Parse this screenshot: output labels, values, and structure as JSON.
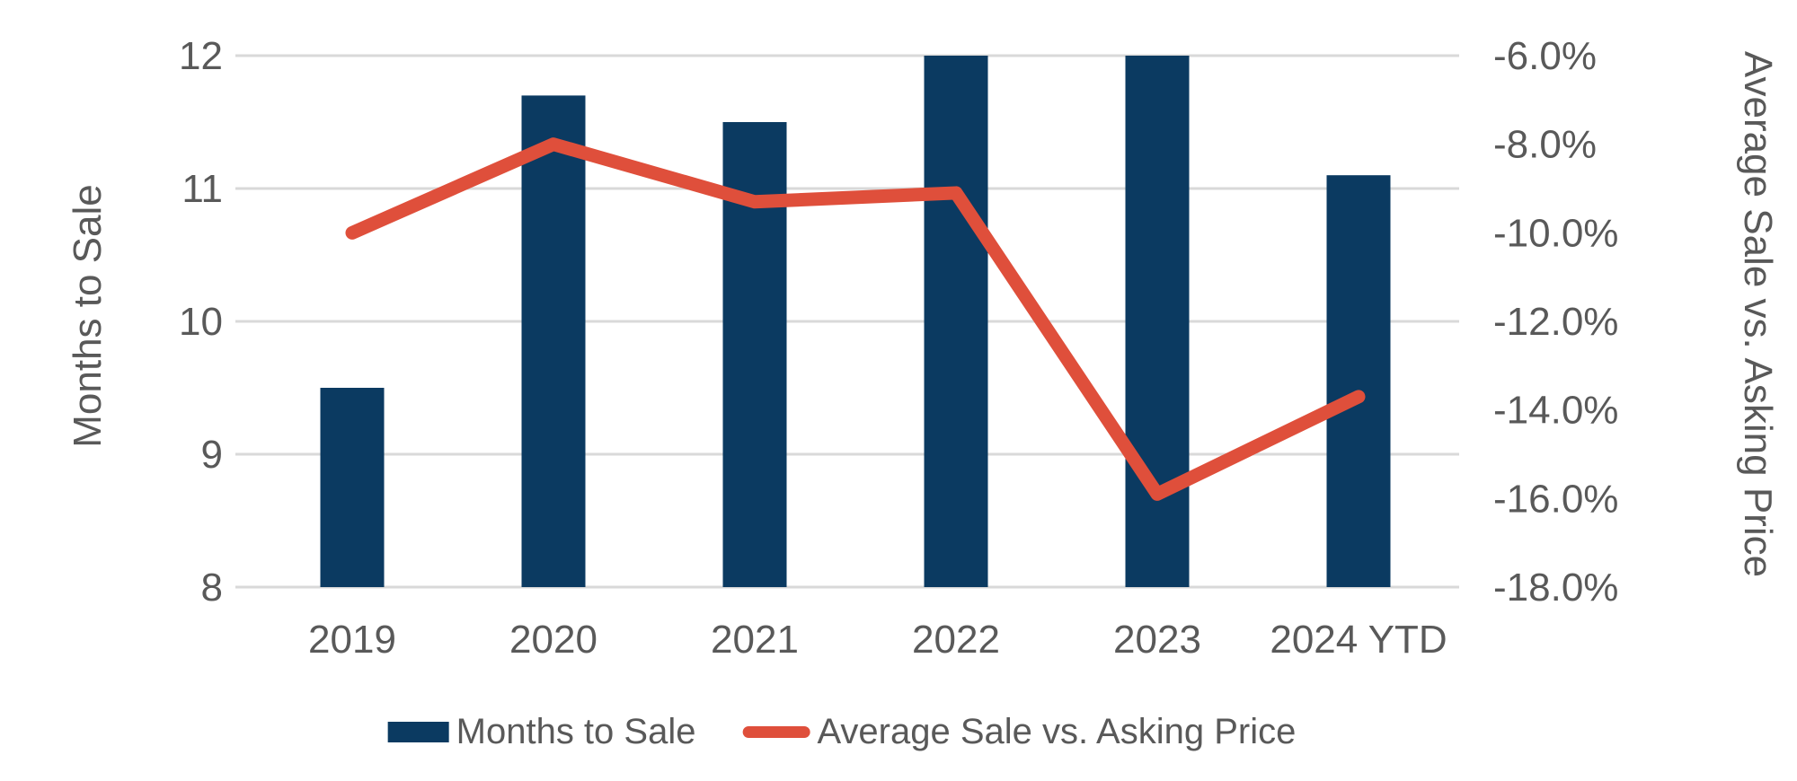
{
  "chart_data": {
    "type": "combo-bar-line",
    "categories": [
      "2019",
      "2020",
      "2021",
      "2022",
      "2023",
      "2024 YTD"
    ],
    "series": [
      {
        "name": "Months to Sale",
        "type": "bar",
        "axis": "left",
        "color": "#0B3A61",
        "values": [
          9.5,
          11.7,
          11.5,
          12.0,
          12.0,
          11.1
        ]
      },
      {
        "name": "Average Sale vs. Asking Price",
        "type": "line",
        "axis": "right",
        "color": "#DF4F3B",
        "values": [
          -10.0,
          -8.0,
          -9.3,
          -9.1,
          -15.9,
          -13.7
        ]
      }
    ],
    "left_axis": {
      "title": "Months to Sale",
      "min": 8,
      "max": 12,
      "tick_values": [
        12,
        11,
        10,
        9,
        8
      ],
      "tick_labels": [
        "12",
        "11",
        "10",
        "9",
        "8"
      ]
    },
    "right_axis": {
      "title": "Average Sale vs. Asking Price",
      "min": -18,
      "max": -6,
      "tick_values": [
        -6,
        -8,
        -10,
        -12,
        -14,
        -16,
        -18
      ],
      "tick_labels": [
        "-6.0%",
        "-8.0%",
        "-10.0%",
        "-12.0%",
        "-14.0%",
        "-16.0%",
        "-18.0%"
      ]
    },
    "grid": true,
    "legend_position": "bottom",
    "colors": {
      "text": "#595959",
      "gridline": "#D9D9D9",
      "background": "#FFFFFF"
    }
  }
}
